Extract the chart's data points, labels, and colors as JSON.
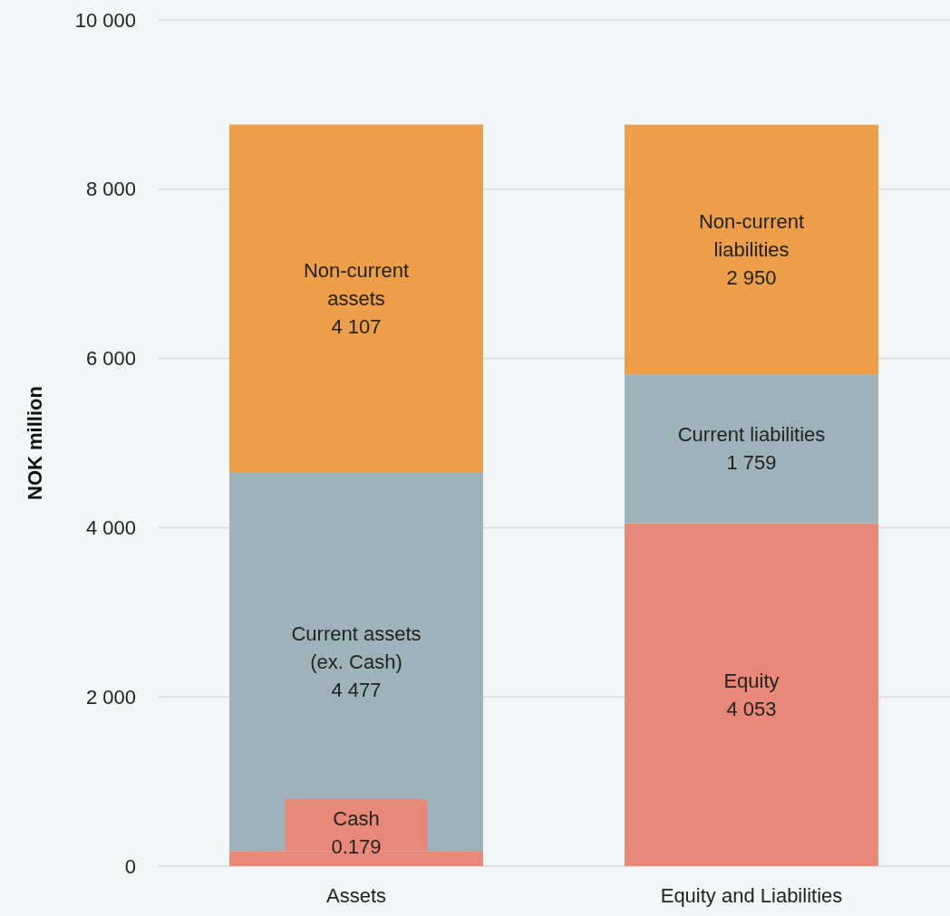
{
  "chart_data": {
    "type": "bar",
    "stacked": true,
    "ylabel": "NOK million",
    "categories": [
      "Assets",
      "Equity and Liabilities"
    ],
    "series": [
      {
        "color": "#e88878",
        "values": [
          180,
          4053
        ],
        "value_labels": [
          "Cash\n0.179",
          "Equity\n4 053"
        ]
      },
      {
        "color": "#9bb3b9",
        "values": [
          4477,
          1759
        ],
        "value_labels": [
          "Current assets\n(ex. Cash)\n4 477",
          "Current liabilities\n1 759"
        ]
      },
      {
        "color": "#ed9e48",
        "values": [
          4107,
          2950
        ],
        "value_labels": [
          "Non-current\nassets\n4 107",
          "Non-current\nliabilities\n2 950"
        ]
      }
    ],
    "ylim": [
      0,
      10000
    ],
    "yticks": [
      {
        "value": 0,
        "label": "0"
      },
      {
        "value": 2000,
        "label": "2 000"
      },
      {
        "value": 4000,
        "label": "4 000"
      },
      {
        "value": 6000,
        "label": "6 000"
      },
      {
        "value": 8000,
        "label": "8 000"
      },
      {
        "value": 10000,
        "label": "10 000"
      }
    ],
    "grid": "y"
  }
}
